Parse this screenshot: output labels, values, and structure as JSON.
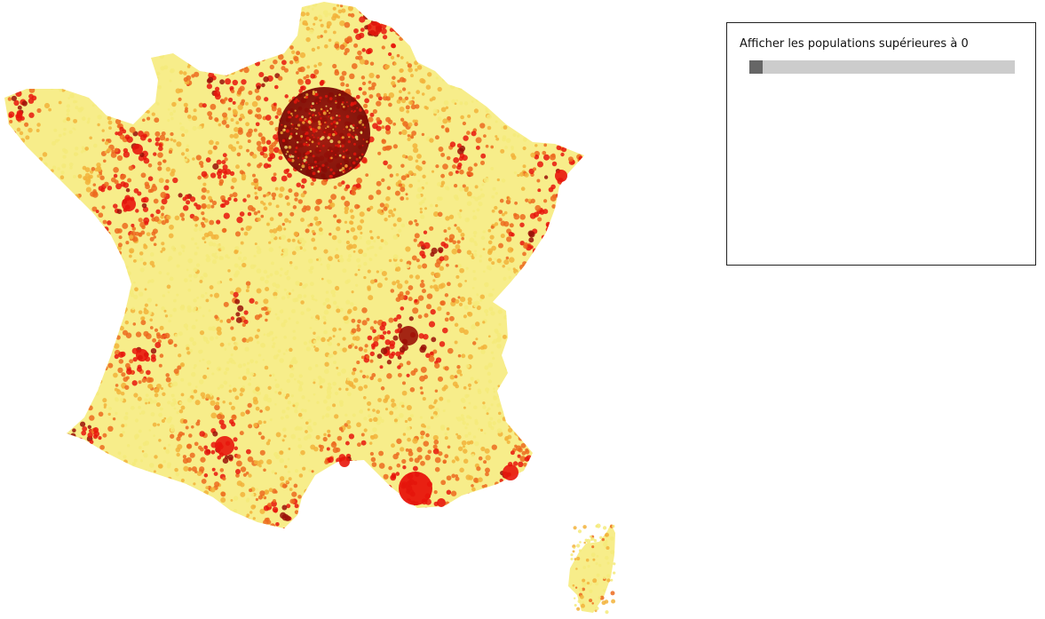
{
  "filter": {
    "label": "Afficher les populations supérieures à 0",
    "threshold": 0,
    "threshold_fraction": 0
  },
  "map": {
    "colors": {
      "light": "#f5ea7a",
      "mid": "#f2b23a",
      "orange": "#ec6a1e",
      "red": "#e8150c",
      "dark": "#9a0f07"
    }
  }
}
